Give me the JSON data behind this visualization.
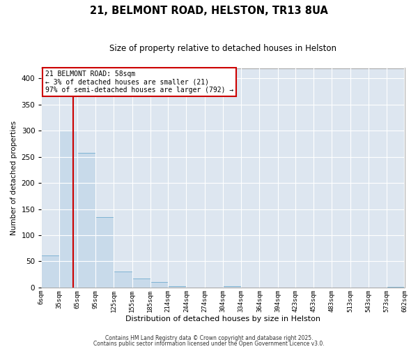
{
  "title": "21, BELMONT ROAD, HELSTON, TR13 8UA",
  "subtitle": "Size of property relative to detached houses in Helston",
  "xlabel": "Distribution of detached houses by size in Helston",
  "ylabel": "Number of detached properties",
  "bar_color": "#c8daea",
  "bar_edge_color": "#7fb3d3",
  "background_color": "#dde6f0",
  "grid_color": "#ffffff",
  "bins": [
    6,
    35,
    65,
    95,
    125,
    155,
    185,
    214,
    244,
    274,
    304,
    334,
    364,
    394,
    423,
    453,
    483,
    513,
    543,
    573,
    602
  ],
  "counts": [
    62,
    300,
    258,
    135,
    30,
    17,
    11,
    3,
    0,
    0,
    2,
    0,
    0,
    0,
    0,
    0,
    0,
    0,
    0,
    1
  ],
  "vline_x": 58,
  "vline_color": "#cc0000",
  "ylim": [
    0,
    420
  ],
  "yticks": [
    0,
    50,
    100,
    150,
    200,
    250,
    300,
    350,
    400
  ],
  "annotation_line1": "21 BELMONT ROAD: 58sqm",
  "annotation_line2": "← 3% of detached houses are smaller (21)",
  "annotation_line3": "97% of semi-detached houses are larger (792) →",
  "annotation_box_color": "#ffffff",
  "annotation_box_edge": "#cc0000",
  "footer1": "Contains HM Land Registry data © Crown copyright and database right 2025.",
  "footer2": "Contains public sector information licensed under the Open Government Licence v3.0.",
  "tick_labels": [
    "6sqm",
    "35sqm",
    "65sqm",
    "95sqm",
    "125sqm",
    "155sqm",
    "185sqm",
    "214sqm",
    "244sqm",
    "274sqm",
    "304sqm",
    "334sqm",
    "364sqm",
    "394sqm",
    "423sqm",
    "453sqm",
    "483sqm",
    "513sqm",
    "543sqm",
    "573sqm",
    "602sqm"
  ]
}
